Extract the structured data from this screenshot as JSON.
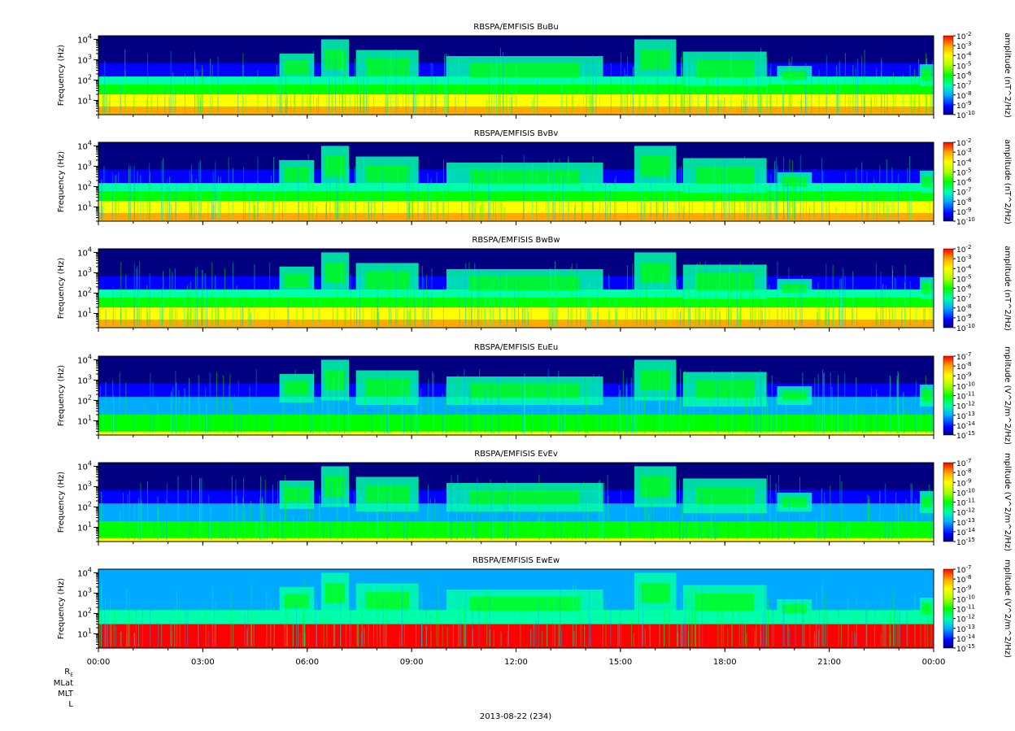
{
  "chart_data": [
    {
      "type": "heatmap",
      "title": "RBSPA/EMFISIS  BuBu",
      "ylabel": "Frequency (Hz)",
      "ylim": [
        2,
        15000
      ],
      "yscale": "log",
      "yticks": [
        {
          "v": 10,
          "e": "1"
        },
        {
          "v": 100,
          "e": "2"
        },
        {
          "v": 1000,
          "e": "3"
        },
        {
          "v": 10000,
          "e": "4"
        }
      ],
      "colorbar": {
        "label": "amplitude (nT^2/Hz)",
        "ticks": [
          {
            "v": -2,
            "e": "-2"
          },
          {
            "v": -3,
            "e": "-3"
          },
          {
            "v": -4,
            "e": "-4"
          },
          {
            "v": -5,
            "e": "-5"
          },
          {
            "v": -6,
            "e": "-6"
          },
          {
            "v": -7,
            "e": "-7"
          },
          {
            "v": -8,
            "e": "-8"
          },
          {
            "v": -9,
            "e": "-9"
          },
          {
            "v": -10,
            "e": "-10"
          }
        ],
        "range": [
          -10,
          -2
        ]
      }
    },
    {
      "type": "heatmap",
      "title": "RBSPA/EMFISIS  BvBv",
      "ylabel": "Frequency (Hz)",
      "ylim": [
        2,
        15000
      ],
      "yscale": "log",
      "yticks": [
        {
          "v": 10,
          "e": "1"
        },
        {
          "v": 100,
          "e": "2"
        },
        {
          "v": 1000,
          "e": "3"
        },
        {
          "v": 10000,
          "e": "4"
        }
      ],
      "colorbar": {
        "label": "amplitude (nT^2/Hz)",
        "ticks": [
          {
            "v": -2,
            "e": "-2"
          },
          {
            "v": -3,
            "e": "-3"
          },
          {
            "v": -4,
            "e": "-4"
          },
          {
            "v": -5,
            "e": "-5"
          },
          {
            "v": -6,
            "e": "-6"
          },
          {
            "v": -7,
            "e": "-7"
          },
          {
            "v": -8,
            "e": "-8"
          },
          {
            "v": -9,
            "e": "-9"
          },
          {
            "v": -10,
            "e": "-10"
          }
        ],
        "range": [
          -10,
          -2
        ]
      }
    },
    {
      "type": "heatmap",
      "title": "RBSPA/EMFISIS  BwBw",
      "ylabel": "Frequency (Hz)",
      "ylim": [
        2,
        15000
      ],
      "yscale": "log",
      "yticks": [
        {
          "v": 10,
          "e": "1"
        },
        {
          "v": 100,
          "e": "2"
        },
        {
          "v": 1000,
          "e": "3"
        },
        {
          "v": 10000,
          "e": "4"
        }
      ],
      "colorbar": {
        "label": "amplitude (nT^2/Hz)",
        "ticks": [
          {
            "v": -2,
            "e": "-2"
          },
          {
            "v": -3,
            "e": "-3"
          },
          {
            "v": -4,
            "e": "-4"
          },
          {
            "v": -5,
            "e": "-5"
          },
          {
            "v": -6,
            "e": "-6"
          },
          {
            "v": -7,
            "e": "-7"
          },
          {
            "v": -8,
            "e": "-8"
          },
          {
            "v": -9,
            "e": "-9"
          },
          {
            "v": -10,
            "e": "-10"
          }
        ],
        "range": [
          -10,
          -2
        ]
      }
    },
    {
      "type": "heatmap",
      "title": "RBSPA/EMFISIS  EuEu",
      "ylabel": "Frequency (Hz)",
      "ylim": [
        2,
        15000
      ],
      "yscale": "log",
      "yticks": [
        {
          "v": 10,
          "e": "1"
        },
        {
          "v": 100,
          "e": "2"
        },
        {
          "v": 1000,
          "e": "3"
        },
        {
          "v": 10000,
          "e": "4"
        }
      ],
      "colorbar": {
        "label": "mplitude (V^2/m^2/Hz)",
        "ticks": [
          {
            "v": -7,
            "e": "-7"
          },
          {
            "v": -8,
            "e": "-8"
          },
          {
            "v": -9,
            "e": "-9"
          },
          {
            "v": -10,
            "e": "-10"
          },
          {
            "v": -11,
            "e": "-11"
          },
          {
            "v": -12,
            "e": "-12"
          },
          {
            "v": -13,
            "e": "-13"
          },
          {
            "v": -14,
            "e": "-14"
          },
          {
            "v": -15,
            "e": "-15"
          }
        ],
        "range": [
          -15,
          -7
        ]
      }
    },
    {
      "type": "heatmap",
      "title": "RBSPA/EMFISIS  EvEv",
      "ylabel": "Frequency (Hz)",
      "ylim": [
        2,
        15000
      ],
      "yscale": "log",
      "yticks": [
        {
          "v": 10,
          "e": "1"
        },
        {
          "v": 100,
          "e": "2"
        },
        {
          "v": 1000,
          "e": "3"
        },
        {
          "v": 10000,
          "e": "4"
        }
      ],
      "colorbar": {
        "label": "mplitude (V^2/m^2/Hz)",
        "ticks": [
          {
            "v": -7,
            "e": "-7"
          },
          {
            "v": -8,
            "e": "-8"
          },
          {
            "v": -9,
            "e": "-9"
          },
          {
            "v": -10,
            "e": "-10"
          },
          {
            "v": -11,
            "e": "-11"
          },
          {
            "v": -12,
            "e": "-12"
          },
          {
            "v": -13,
            "e": "-13"
          },
          {
            "v": -14,
            "e": "-14"
          },
          {
            "v": -15,
            "e": "-15"
          }
        ],
        "range": [
          -15,
          -7
        ]
      }
    },
    {
      "type": "heatmap",
      "title": "RBSPA/EMFISIS  EwEw",
      "ylabel": "Frequency (Hz)",
      "ylim": [
        2,
        15000
      ],
      "yscale": "log",
      "yticks": [
        {
          "v": 10,
          "e": "1"
        },
        {
          "v": 100,
          "e": "2"
        },
        {
          "v": 1000,
          "e": "3"
        },
        {
          "v": 10000,
          "e": "4"
        }
      ],
      "colorbar": {
        "label": "mplitude (V^2/m^2/Hz)",
        "ticks": [
          {
            "v": -7,
            "e": "-7"
          },
          {
            "v": -8,
            "e": "-8"
          },
          {
            "v": -9,
            "e": "-9"
          },
          {
            "v": -10,
            "e": "-10"
          },
          {
            "v": -11,
            "e": "-11"
          },
          {
            "v": -12,
            "e": "-12"
          },
          {
            "v": -13,
            "e": "-13"
          },
          {
            "v": -14,
            "e": "-14"
          },
          {
            "v": -15,
            "e": "-15"
          }
        ],
        "range": [
          -15,
          -7
        ]
      }
    }
  ],
  "x_axis": {
    "xlim": [
      0,
      24
    ],
    "ticks": [
      {
        "v": 0,
        "label": "00:00"
      },
      {
        "v": 3,
        "label": "03:00"
      },
      {
        "v": 6,
        "label": "06:00"
      },
      {
        "v": 9,
        "label": "09:00"
      },
      {
        "v": 12,
        "label": "12:00"
      },
      {
        "v": 15,
        "label": "15:00"
      },
      {
        "v": 18,
        "label": "18:00"
      },
      {
        "v": 21,
        "label": "21:00"
      },
      {
        "v": 24,
        "label": "00:00"
      }
    ],
    "minor_step": 1
  },
  "ephemeris_labels": {
    "re_main": "R",
    "re_sub": "E",
    "mlat": "MLat",
    "mlt": "MLT",
    "l": "L"
  },
  "date_label": "2013-08-22 (234)",
  "colormap": [
    "#000080",
    "#0000ff",
    "#00aaff",
    "#00ffaa",
    "#00ff00",
    "#aaff00",
    "#ffff00",
    "#ffaa00",
    "#ff0000"
  ]
}
